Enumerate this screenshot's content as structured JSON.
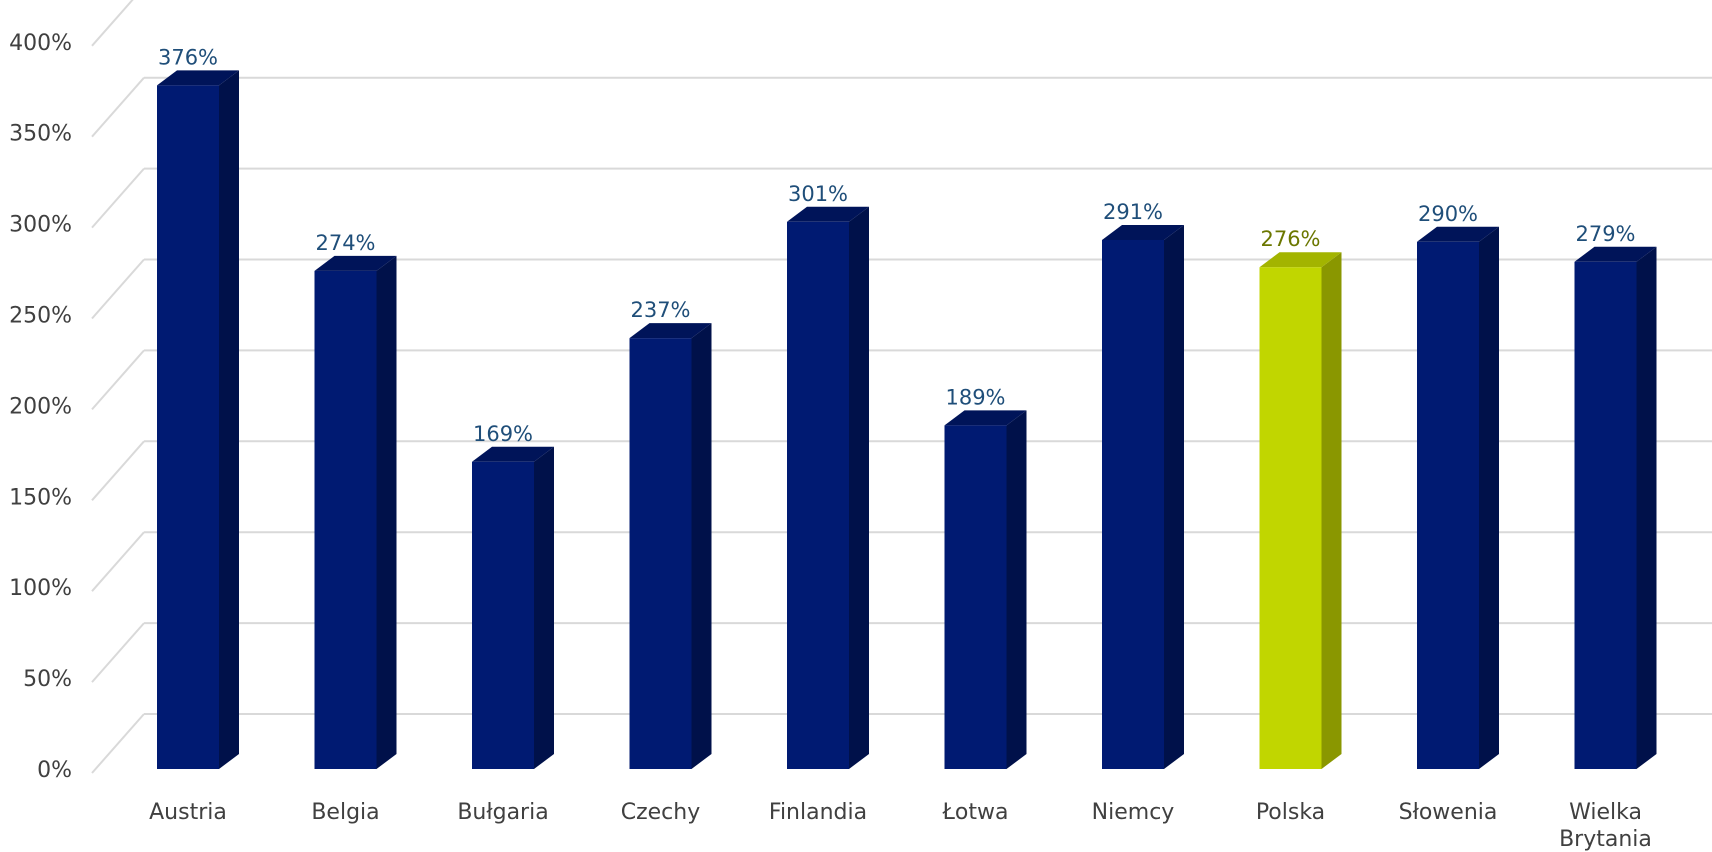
{
  "chart_data": {
    "type": "bar",
    "categories": [
      "Austria",
      "Belgia",
      "Bułgaria",
      "Czechy",
      "Finlandia",
      "Łotwa",
      "Niemcy",
      "Polska",
      "Słowenia",
      "Wielka Brytania"
    ],
    "values": [
      376,
      274,
      169,
      237,
      301,
      189,
      291,
      276,
      290,
      279
    ],
    "data_labels": [
      "376%",
      "274%",
      "169%",
      "237%",
      "301%",
      "189%",
      "291%",
      "276%",
      "290%",
      "279%"
    ],
    "y_ticks": [
      "0%",
      "50%",
      "100%",
      "150%",
      "200%",
      "250%",
      "300%",
      "350%",
      "400%"
    ],
    "ylim": [
      0,
      400
    ],
    "grid": true,
    "legend": "none",
    "style": "3d-column",
    "colors": {
      "bar": "#001a72",
      "bar_side": "#00114a",
      "bar_top": "#001459",
      "highlight": "#c1d600",
      "highlight_side": "#8a9700",
      "highlight_top": "#a3b400",
      "label": "#1f4e79",
      "highlight_label": "#6b7700"
    },
    "highlight_category": "Polska"
  }
}
